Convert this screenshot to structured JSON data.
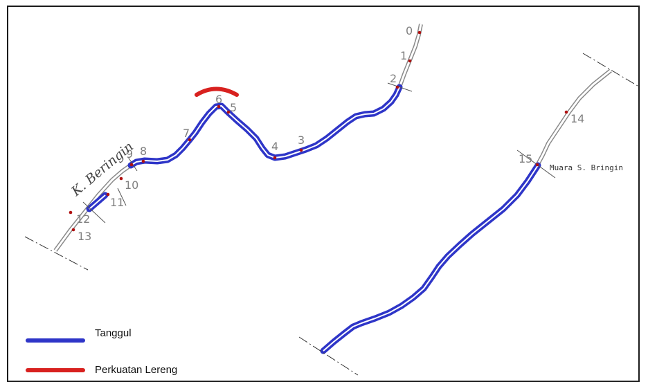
{
  "map": {
    "river_name": "K. Beringin",
    "estuary_name": "Muara S. Bringin",
    "stations": [
      "0",
      "1",
      "2",
      "3",
      "4",
      "5",
      "6",
      "7",
      "8",
      "9",
      "10",
      "11",
      "12",
      "13",
      "14",
      "15"
    ]
  },
  "legend": {
    "items": [
      {
        "label": "Tanggul",
        "color": "#2e35c8"
      },
      {
        "label": "Perkuatan Lereng",
        "color": "#d8211f"
      }
    ]
  },
  "colors": {
    "levee": "#2e35c8",
    "slope": "#d8211f",
    "station_dot": "#b01010",
    "river_line": "#8a8a8a"
  }
}
